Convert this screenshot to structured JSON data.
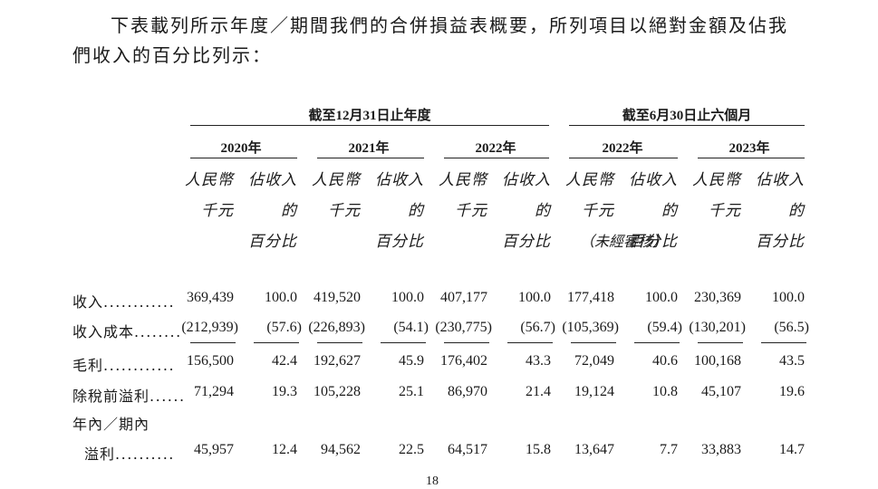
{
  "intro": {
    "line1": "下表載列所示年度／期間我們的合併損益表概要，所列項目以絕對金額及佔我",
    "line2": "們收入的百分比列示："
  },
  "groups": {
    "annual": "截至12月31日止年度",
    "interim": "截至6月30日止六個月"
  },
  "years": [
    "2020年",
    "2021年",
    "2022年",
    "2022年",
    "2023年"
  ],
  "col_headers": {
    "amount": "人民幣\n千元",
    "percent": "佔收入的\n百分比"
  },
  "unaudited_note": "（未經審核）",
  "rows": [
    {
      "label": "收入",
      "dots": "............",
      "values": [
        "369,439",
        "100.0",
        "419,520",
        "100.0",
        "407,177",
        "100.0",
        "177,418",
        "100.0",
        "230,369",
        "100.0"
      ]
    },
    {
      "label": "收入成本",
      "dots": "........",
      "values": [
        "(212,939)",
        "(57.6)",
        "(226,893)",
        "(54.1)",
        "(230,775)",
        "(56.7)",
        "(105,369)",
        "(59.4)",
        "(130,201)",
        "(56.5)"
      ]
    },
    {
      "label": "毛利",
      "dots": "............",
      "values": [
        "156,500",
        "42.4",
        "192,627",
        "45.9",
        "176,402",
        "43.3",
        "72,049",
        "40.6",
        "100,168",
        "43.5"
      ]
    },
    {
      "label": "除稅前溢利",
      "dots": "......",
      "values": [
        "71,294",
        "19.3",
        "105,228",
        "25.1",
        "86,970",
        "21.4",
        "19,124",
        "10.8",
        "45,107",
        "19.6"
      ]
    },
    {
      "label": "年內／期內",
      "dots": "",
      "values": []
    },
    {
      "label": "溢利",
      "dots": "..........",
      "values": [
        "45,957",
        "12.4",
        "94,562",
        "22.5",
        "64,517",
        "15.8",
        "13,647",
        "7.7",
        "33,883",
        "14.7"
      ]
    }
  ],
  "page_number": "18"
}
